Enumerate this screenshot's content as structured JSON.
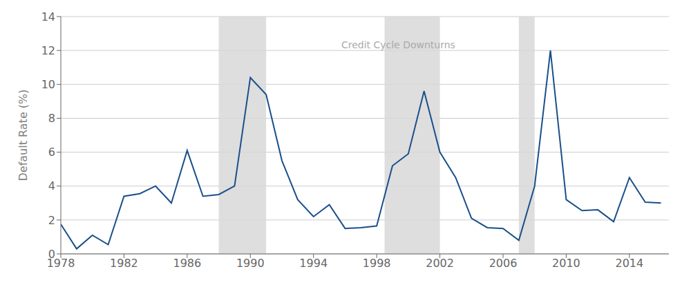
{
  "chart_data": {
    "type": "line",
    "ylabel": "Default Rate (%)",
    "annotation": "Credit Cycle Downturns",
    "color": "#1a4f8a",
    "shaded_regions": [
      [
        1988.0,
        1991.0
      ],
      [
        1998.5,
        2002.0
      ],
      [
        2007.0,
        2008.0
      ]
    ],
    "x": [
      1978,
      1979,
      1980,
      1981,
      1982,
      1983,
      1984,
      1985,
      1986,
      1987,
      1988,
      1989,
      1990,
      1991,
      1992,
      1993,
      1994,
      1995,
      1996,
      1997,
      1998,
      1999,
      2000,
      2001,
      2002,
      2003,
      2004,
      2005,
      2006,
      2007,
      2008,
      2009,
      2010,
      2011,
      2012,
      2013,
      2014,
      2015,
      2016
    ],
    "values": [
      1.75,
      0.3,
      1.1,
      0.55,
      3.4,
      3.55,
      4.0,
      3.0,
      6.1,
      3.4,
      3.5,
      4.0,
      10.4,
      9.4,
      5.5,
      3.2,
      2.2,
      2.9,
      1.5,
      1.55,
      1.65,
      5.2,
      5.9,
      9.6,
      6.0,
      4.5,
      2.1,
      1.55,
      1.5,
      0.8,
      4.0,
      12.0,
      3.2,
      2.55,
      2.6,
      1.9,
      4.5,
      3.05,
      3.0
    ],
    "xlim": [
      1978,
      2016.5
    ],
    "xticks": [
      1978,
      1982,
      1986,
      1990,
      1994,
      1998,
      2002,
      2006,
      2010,
      2014
    ],
    "ylim": [
      0,
      14
    ],
    "yticks": [
      0,
      2,
      4,
      6,
      8,
      10,
      12,
      14
    ],
    "grid": true
  }
}
